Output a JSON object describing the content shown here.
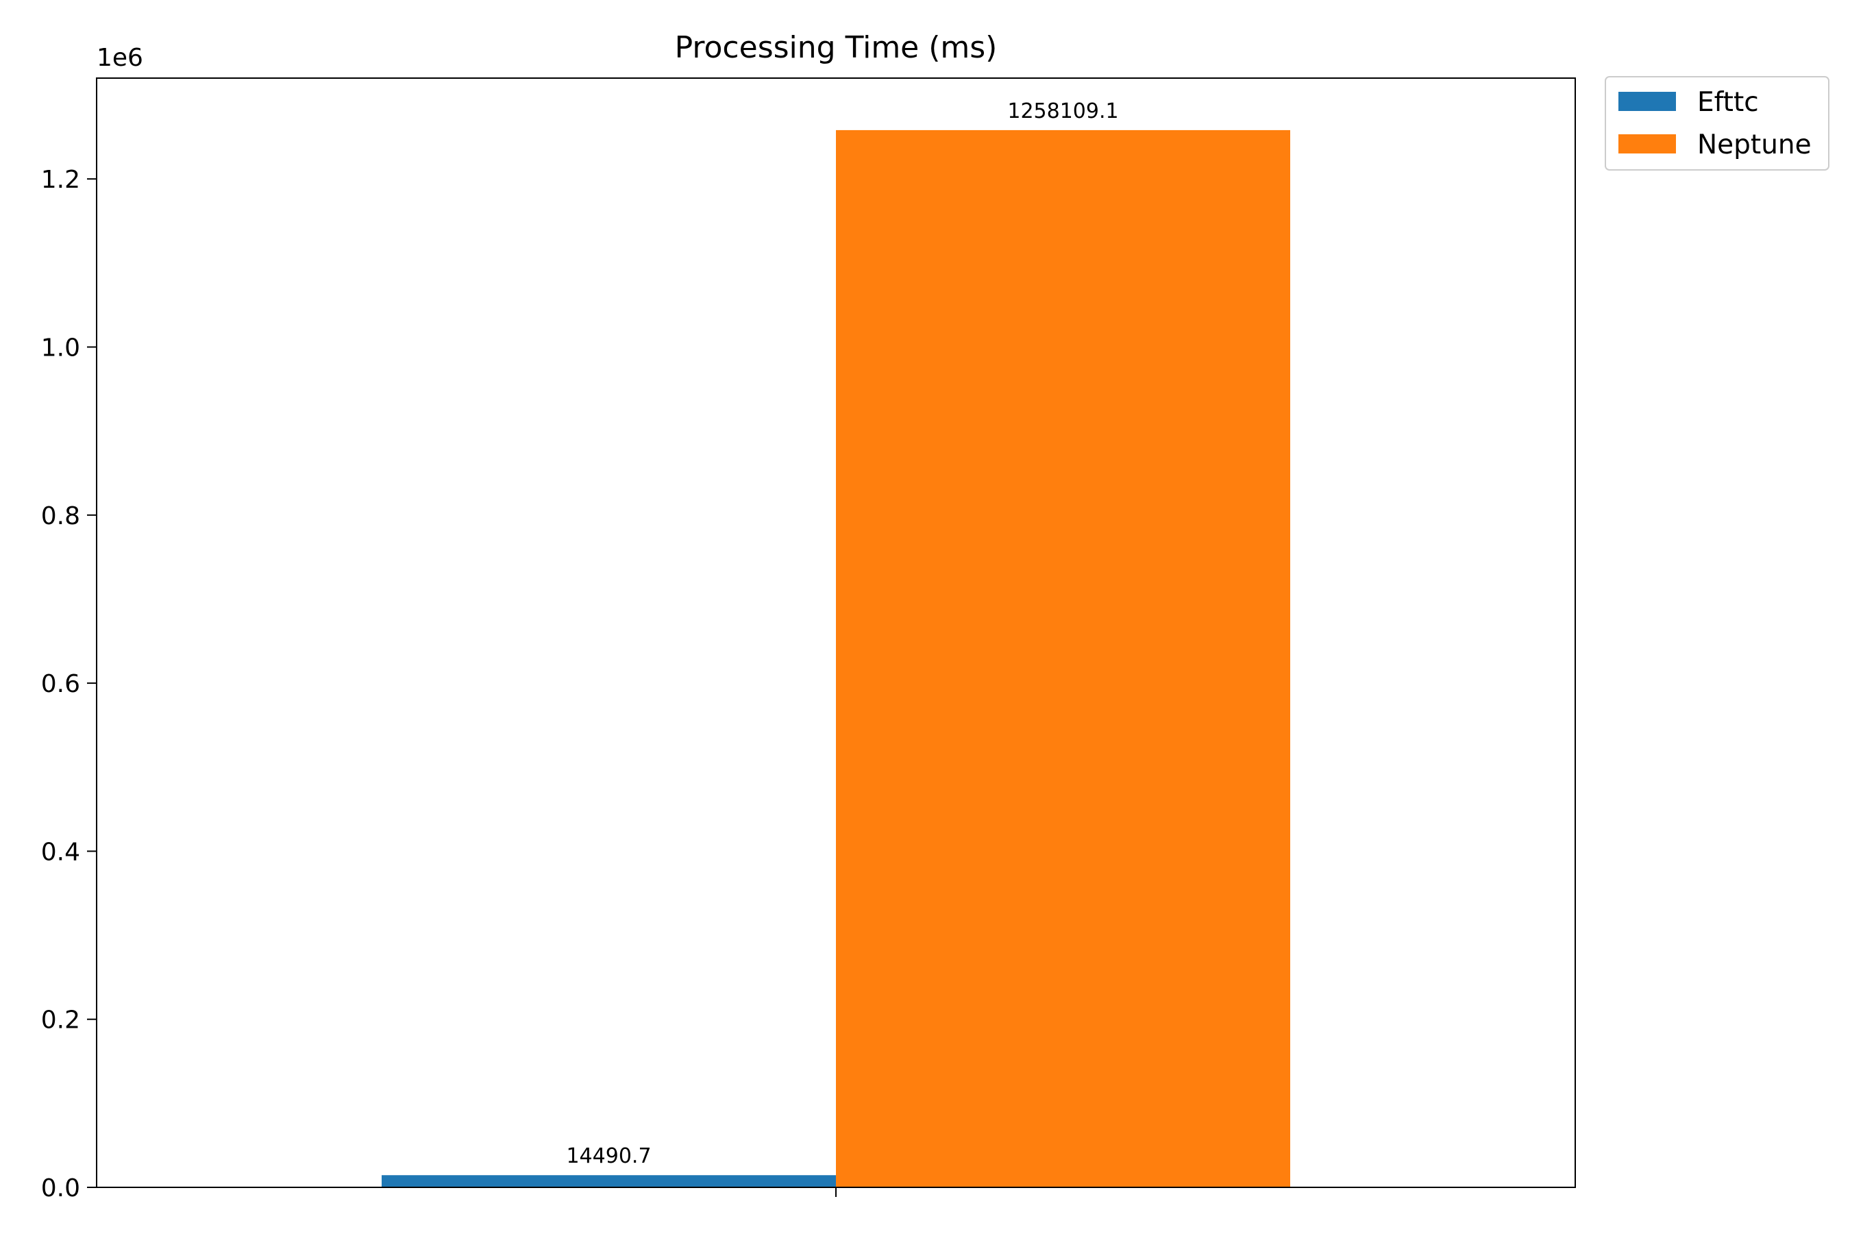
{
  "chart_data": {
    "type": "bar",
    "title": "Processing Time (ms)",
    "xlabel": "",
    "ylabel": "",
    "categories": [
      ""
    ],
    "series": [
      {
        "name": "Efttc",
        "values": [
          14490.7
        ],
        "color": "#1f77b4",
        "value_label": "14490.7"
      },
      {
        "name": "Neptune",
        "values": [
          1258109.1
        ],
        "color": "#ff7f0e",
        "value_label": "1258109.1"
      }
    ],
    "ylim": [
      0,
      1320000
    ],
    "y_ticks": [
      0,
      200000,
      400000,
      600000,
      800000,
      1000000,
      1200000
    ],
    "y_tick_labels": [
      "0.0",
      "0.2",
      "0.4",
      "0.6",
      "0.8",
      "1.0",
      "1.2"
    ],
    "y_offset_label": "1e6",
    "grid": false,
    "legend_position": "outside top-right"
  }
}
